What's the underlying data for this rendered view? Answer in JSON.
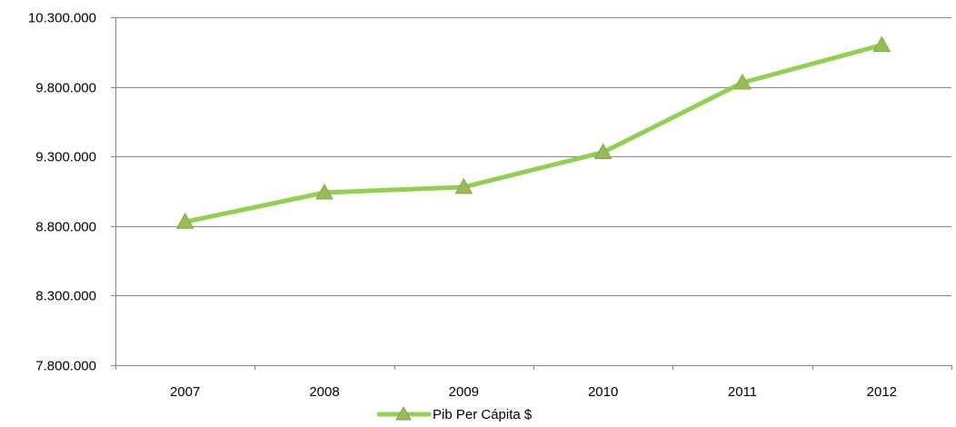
{
  "chart_data": {
    "type": "line",
    "title": "",
    "xlabel": "",
    "ylabel": "",
    "categories": [
      "2007",
      "2008",
      "2009",
      "2010",
      "2011",
      "2012"
    ],
    "series": [
      {
        "name": "Pib Per Cápita $",
        "values": [
          8830000,
          9040000,
          9080000,
          9330000,
          9830000,
          10100000
        ],
        "color": "#92d050",
        "marker": "triangle"
      }
    ],
    "ylim": [
      7800000,
      10300000
    ],
    "yticks": [
      7800000,
      8300000,
      8800000,
      9300000,
      9800000,
      10300000
    ],
    "ytick_labels": [
      "7.800.000",
      "8.300.000",
      "8.800.000",
      "9.300.000",
      "9.800.000",
      "10.300.000"
    ],
    "grid": "horizontal",
    "legend": "bottom"
  }
}
